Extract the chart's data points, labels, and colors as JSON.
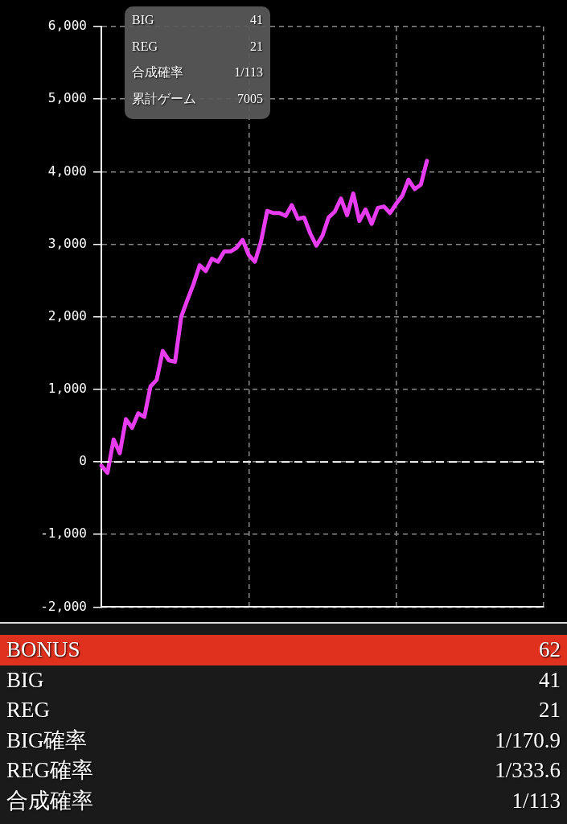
{
  "chart_data": {
    "type": "line",
    "categories": [
      null,
      null,
      null,
      null,
      null,
      null,
      null,
      null,
      null,
      null,
      null,
      null,
      null,
      null,
      null,
      null,
      null,
      null,
      null,
      null,
      null,
      null,
      null,
      null,
      null,
      null,
      null,
      null,
      null,
      null,
      null,
      null,
      null,
      null,
      null,
      null,
      null,
      null,
      null,
      null,
      null,
      null,
      null,
      null,
      null,
      null,
      null,
      null,
      null,
      null,
      null,
      null,
      null,
      null,
      null,
      null,
      null,
      null,
      null,
      null,
      null,
      null,
      null,
      null,
      null,
      null,
      null,
      null,
      null,
      null,
      null,
      null,
      null
    ],
    "series": [
      {
        "color": "#e83cf0",
        "values": [
          -50,
          -150,
          310,
          120,
          590,
          470,
          670,
          620,
          1040,
          1130,
          1530,
          1400,
          1380,
          2000,
          2230,
          2450,
          2710,
          2630,
          2800,
          2760,
          2900,
          2900,
          2950,
          3060,
          2850,
          2760,
          3040,
          3460,
          3430,
          3430,
          3390,
          3540,
          3350,
          3370,
          3150,
          2980,
          3120,
          3370,
          3450,
          3630,
          3400,
          3700,
          3320,
          3480,
          3280,
          3500,
          3520,
          3430,
          3560,
          3670,
          3890,
          3760,
          3820,
          4150,
          null,
          null,
          null,
          null,
          null,
          null,
          null,
          null,
          null,
          null,
          null,
          null,
          null,
          null,
          null,
          null,
          null,
          null,
          null
        ]
      }
    ],
    "ylim": [
      -2000,
      6000
    ],
    "yticks": [
      {
        "value": -2000,
        "label": "-2,000"
      },
      {
        "value": -1000,
        "label": "-1,000"
      },
      {
        "value": 0,
        "label": "0"
      },
      {
        "value": 1000,
        "label": "1,000"
      },
      {
        "value": 2000,
        "label": "2,000"
      },
      {
        "value": 3000,
        "label": "3,000"
      },
      {
        "value": 4000,
        "label": "4,000"
      },
      {
        "value": 5000,
        "label": "5,000"
      },
      {
        "value": 6000,
        "label": "6,000"
      }
    ],
    "ref_lines": [
      {
        "axis": "y",
        "value": 0,
        "color": "#e8e8e8",
        "line_style": "dashed"
      }
    ],
    "tick_labels": "y",
    "grid": true,
    "legend": false,
    "marker": "none",
    "line_style": "solid",
    "annotations": [
      "BIG 41",
      "REG 21",
      "合成確率 1/113",
      "累計ゲーム 7005",
      "BONUS 62",
      "BIG 41",
      "REG 21",
      "BIG確率 1/170.9",
      "REG確率 1/333.6",
      "合成確率 1/113"
    ]
  }
}
